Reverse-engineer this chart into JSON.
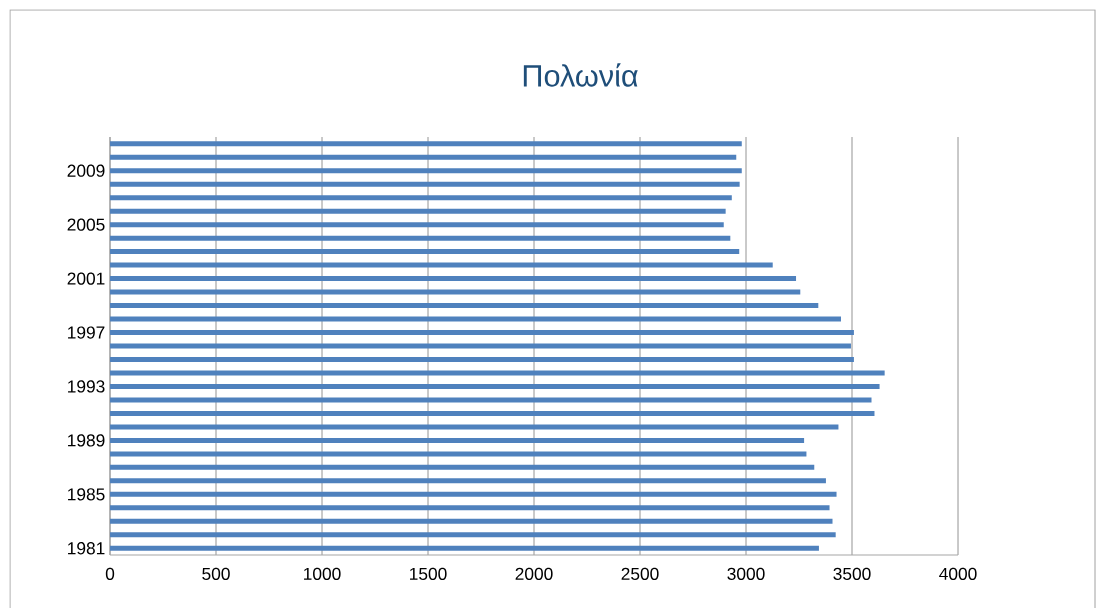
{
  "chart_data": {
    "type": "bar",
    "orientation": "horizontal",
    "title": "Πολωνία",
    "categories": [
      null,
      null,
      "2009",
      null,
      null,
      null,
      "2005",
      null,
      null,
      null,
      "2001",
      null,
      null,
      null,
      "1997",
      null,
      null,
      null,
      "1993",
      null,
      null,
      null,
      "1989",
      null,
      null,
      null,
      "1985",
      null,
      null,
      null,
      "1981"
    ],
    "values": [
      2980,
      2954,
      2980,
      2970,
      2933,
      2904,
      2895,
      2926,
      2968,
      3126,
      3236,
      3256,
      3341,
      3448,
      3509,
      3495,
      3509,
      3654,
      3630,
      3592,
      3606,
      3436,
      3274,
      3285,
      3322,
      3377,
      3427,
      3394,
      3408,
      3423,
      3344
    ],
    "color": "#4f81bd",
    "xlim": [
      0,
      4000
    ],
    "xticks": [
      0,
      500,
      1000,
      1500,
      2000,
      2500,
      3000,
      3500,
      4000
    ],
    "grid": "x"
  }
}
